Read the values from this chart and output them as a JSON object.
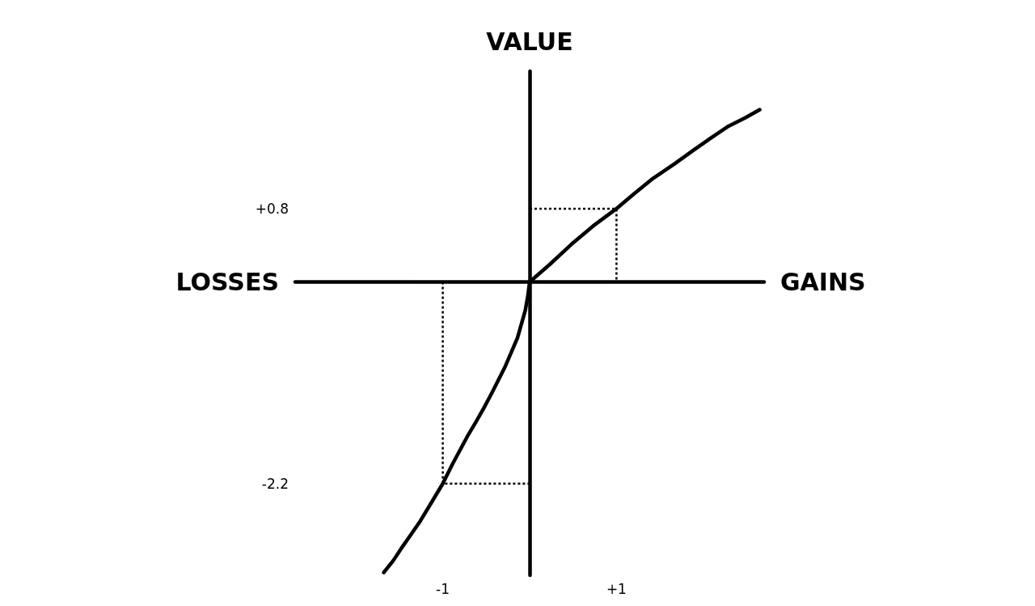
{
  "chart_data": {
    "type": "line",
    "xlabel": "GAINS",
    "ylabel": "VALUE",
    "annotations": [
      "LOSSES"
    ],
    "xlim": [
      -2.7,
      2.7
    ],
    "ylim": [
      -3.2,
      2.3
    ],
    "xticks": [
      -1,
      {
        "value": 1,
        "label": "+1"
      }
    ],
    "yticks": [
      -2.2,
      {
        "value": 0.8,
        "label": "+0.8"
      }
    ],
    "grid": false,
    "marker": "none",
    "line_style": "solid",
    "series": [
      {
        "color": "#000000",
        "x": [
          -1.68,
          -1.57,
          -1.48,
          -1.37,
          -1.26,
          -1.12,
          -1,
          -0.89,
          -0.72,
          -0.62,
          -0.53,
          -0.44,
          -0.36,
          -0.28,
          -0.14,
          -0.05,
          -0.02,
          0,
          0.23,
          0.48,
          0.73,
          1,
          1.2,
          1.42,
          1.67,
          1.89,
          2.1,
          2.29,
          2.48,
          2.65
        ],
        "values": [
          -3.17,
          -3.04,
          -2.91,
          -2.76,
          -2.61,
          -2.39,
          -2.2,
          -1.99,
          -1.69,
          -1.53,
          -1.38,
          -1.22,
          -1.07,
          -0.92,
          -0.61,
          -0.31,
          -0.15,
          0,
          0.19,
          0.41,
          0.61,
          0.8,
          0.96,
          1.13,
          1.29,
          1.44,
          1.58,
          1.7,
          1.79,
          1.88
        ]
      },
      {
        "color": "#000000",
        "line_style": "dotted",
        "x": [
          0,
          1,
          1
        ],
        "values": [
          0.8,
          0.8,
          0
        ]
      },
      {
        "color": "#000000",
        "line_style": "dotted",
        "x": [
          -1,
          -1,
          0
        ],
        "values": [
          0,
          -2.2,
          -2.2
        ]
      }
    ]
  }
}
